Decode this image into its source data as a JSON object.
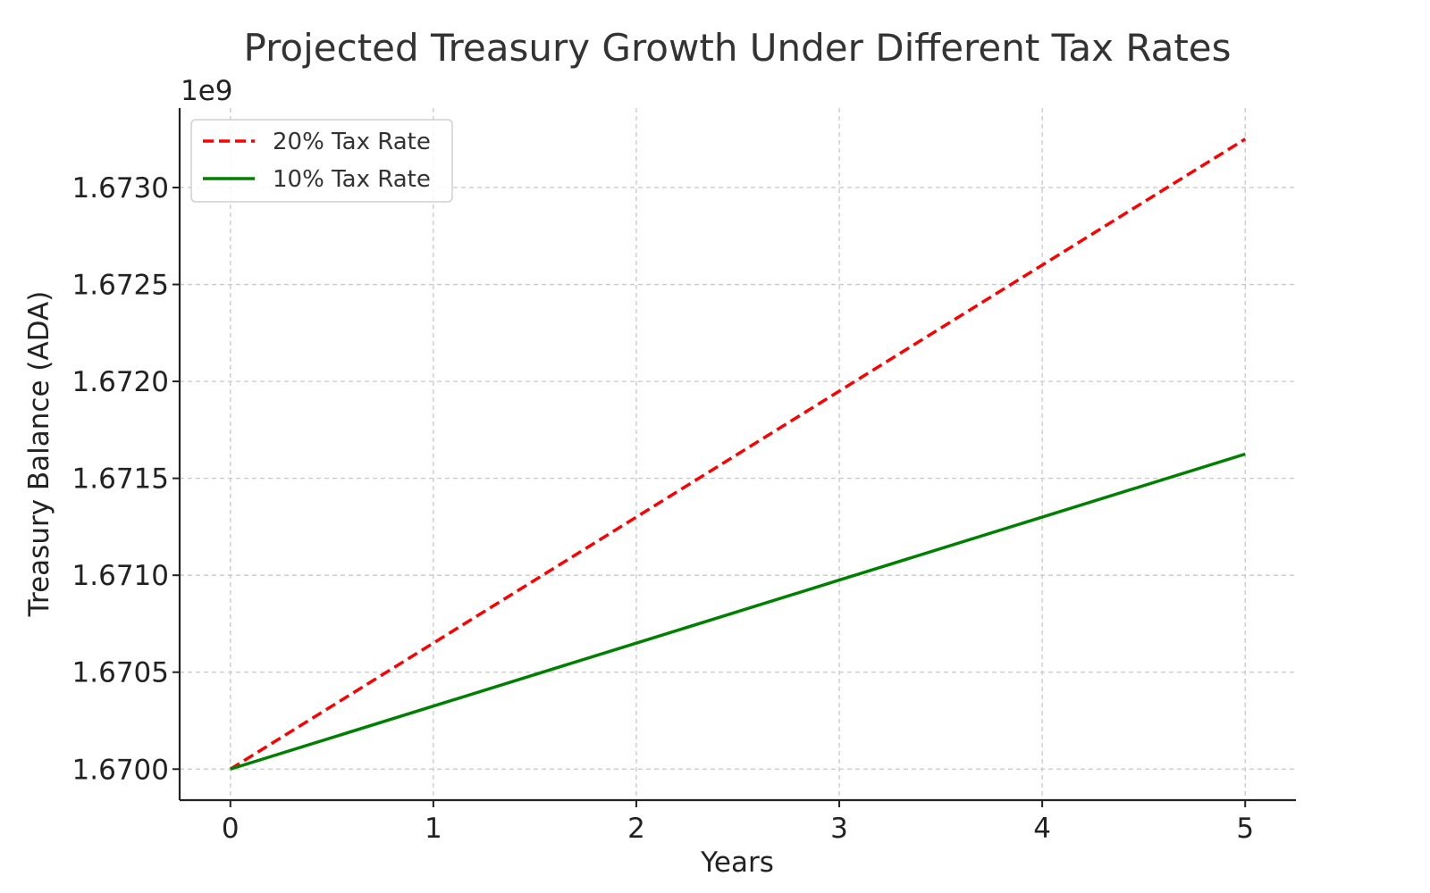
{
  "chart_data": {
    "type": "line",
    "title": "Projected Treasury Growth Under Different Tax Rates",
    "xlabel": "Years",
    "ylabel": "Treasury Balance (ADA)",
    "y_offset_label": "1e9",
    "x": [
      0,
      1,
      2,
      3,
      4,
      5
    ],
    "x_ticks": [
      "0",
      "1",
      "2",
      "3",
      "4",
      "5"
    ],
    "xlim": [
      -0.25,
      5.25
    ],
    "y_ticks": [
      "1.6700",
      "1.6705",
      "1.6710",
      "1.6715",
      "1.6720",
      "1.6725",
      "1.6730"
    ],
    "y_tick_values": [
      1.67,
      1.6705,
      1.671,
      1.6715,
      1.672,
      1.6725,
      1.673
    ],
    "ylim": [
      1.66984,
      1.67341
    ],
    "grid": true,
    "legend_position": "top-left",
    "series": [
      {
        "name": "20% Tax Rate",
        "color": "#ff0000",
        "style": "dashed",
        "values": [
          1.67,
          1.67065,
          1.6713,
          1.67195,
          1.6726,
          1.67325
        ]
      },
      {
        "name": "10% Tax Rate",
        "color": "#008000",
        "style": "solid",
        "values": [
          1.67,
          1.670325,
          1.67065,
          1.670975,
          1.6713,
          1.671625
        ]
      }
    ]
  }
}
